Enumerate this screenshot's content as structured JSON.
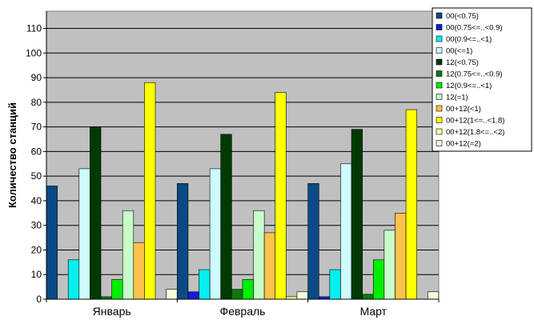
{
  "chart_data": {
    "type": "bar",
    "ylabel": "Количество станций",
    "xlabel": "",
    "ylim": [
      0,
      117
    ],
    "yticks": [
      0,
      10,
      20,
      30,
      40,
      50,
      60,
      70,
      80,
      90,
      100,
      110
    ],
    "grid": true,
    "legend_position": "top-right",
    "categories": [
      "Январь",
      "Февраль",
      "Март"
    ],
    "series": [
      {
        "name": "00(<0.75)",
        "color": "#0a4a86",
        "values": [
          46,
          47,
          47
        ]
      },
      {
        "name": "00(0.75<=..<0.9)",
        "color": "#1a1ad6",
        "values": [
          0,
          3,
          1
        ]
      },
      {
        "name": "00(0.9<=..<1)",
        "color": "#00f0f0",
        "values": [
          16,
          12,
          12
        ]
      },
      {
        "name": "00(<=1)",
        "color": "#ccfcfc",
        "values": [
          53,
          53,
          55
        ]
      },
      {
        "name": "12(<0.75)",
        "color": "#003a00",
        "values": [
          70,
          67,
          69
        ]
      },
      {
        "name": "12(0.75<=..<0.9)",
        "color": "#0a7a0a",
        "values": [
          1,
          4,
          2
        ]
      },
      {
        "name": "12(0.9<=..<1)",
        "color": "#00ee00",
        "values": [
          8,
          8,
          16
        ]
      },
      {
        "name": "12(=1)",
        "color": "#c8fcc8",
        "values": [
          36,
          36,
          28
        ]
      },
      {
        "name": "00+12(<1)",
        "color": "#fcc24c",
        "values": [
          23,
          27,
          35
        ]
      },
      {
        "name": "00+12(1<=..<1.8)",
        "color": "#ffff00",
        "values": [
          88,
          84,
          77
        ]
      },
      {
        "name": "00+12(1.8<=..<2)",
        "color": "#fcfca0",
        "values": [
          0,
          1,
          0
        ]
      },
      {
        "name": "00+12(=2)",
        "color": "#fcfcdc",
        "values": [
          4,
          3,
          3
        ]
      }
    ]
  }
}
